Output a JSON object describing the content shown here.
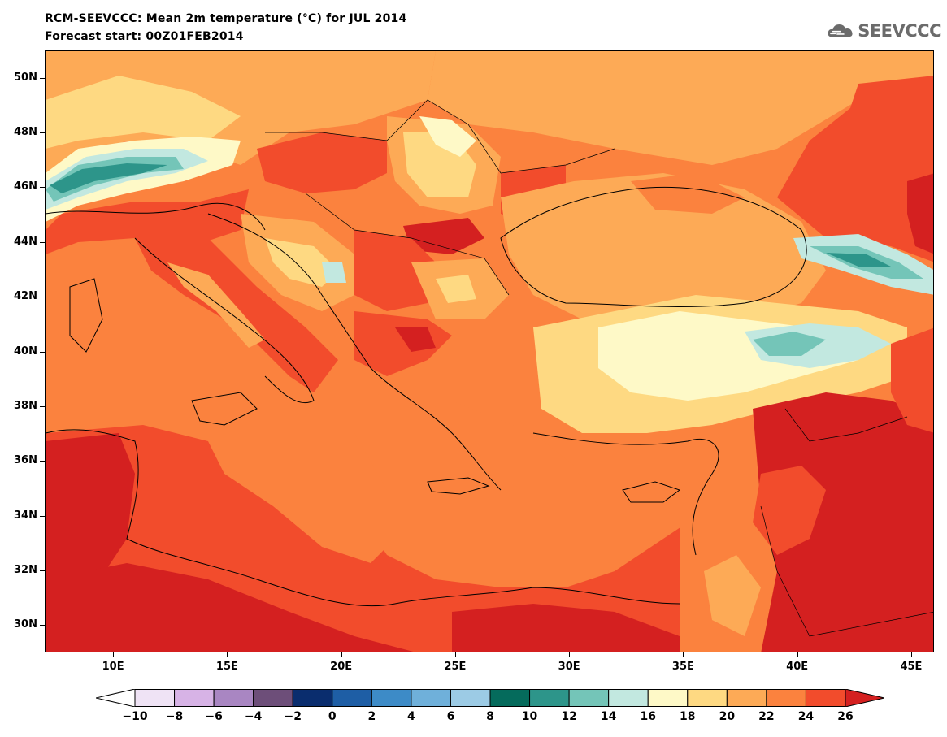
{
  "header": {
    "title": "RCM-SEEVCCC: Mean 2m temperature (°C) for JUL 2014",
    "subtitle": "Forecast start: 00Z01FEB2014",
    "logo_text": "SEEVCCC"
  },
  "map": {
    "projection": "lat-lon",
    "lon_range": [
      7,
      46
    ],
    "lat_range": [
      29,
      51
    ],
    "lat_labels": [
      "50N",
      "48N",
      "46N",
      "44N",
      "42N",
      "40N",
      "38N",
      "36N",
      "34N",
      "32N",
      "30N"
    ],
    "lon_labels": [
      "10E",
      "15E",
      "20E",
      "25E",
      "30E",
      "35E",
      "40E",
      "45E"
    ],
    "variable": "Mean 2m temperature",
    "units": "°C"
  },
  "colorbar": {
    "labels": [
      "−10",
      "−8",
      "−6",
      "−4",
      "−2",
      "0",
      "2",
      "4",
      "6",
      "8",
      "10",
      "12",
      "14",
      "16",
      "18",
      "20",
      "22",
      "24",
      "26"
    ],
    "colors": [
      "#ffffff",
      "#efe3f5",
      "#d7b3e6",
      "#a986c2",
      "#6d4e79",
      "#0a2d6e",
      "#1e5ea5",
      "#3d8bc7",
      "#6fb0da",
      "#9ccbe5",
      "#056b5c",
      "#2d958a",
      "#74c5b8",
      "#c2e8e0",
      "#fef9c7",
      "#fed982",
      "#fdaa56",
      "#fb823e",
      "#f24c2c",
      "#d42020"
    ],
    "palette_map": {
      "warm_24_26": "#f24c2c",
      "hot_26plus": "#d42020",
      "mid_22_24": "#fb823e",
      "mild_20_22": "#fdaa56",
      "cool_18_20": "#fed982",
      "cooler_16_18": "#fef9c7",
      "teal_14_16": "#c2e8e0",
      "teal_12_14": "#74c5b8",
      "teal_10_12": "#2d958a"
    }
  }
}
